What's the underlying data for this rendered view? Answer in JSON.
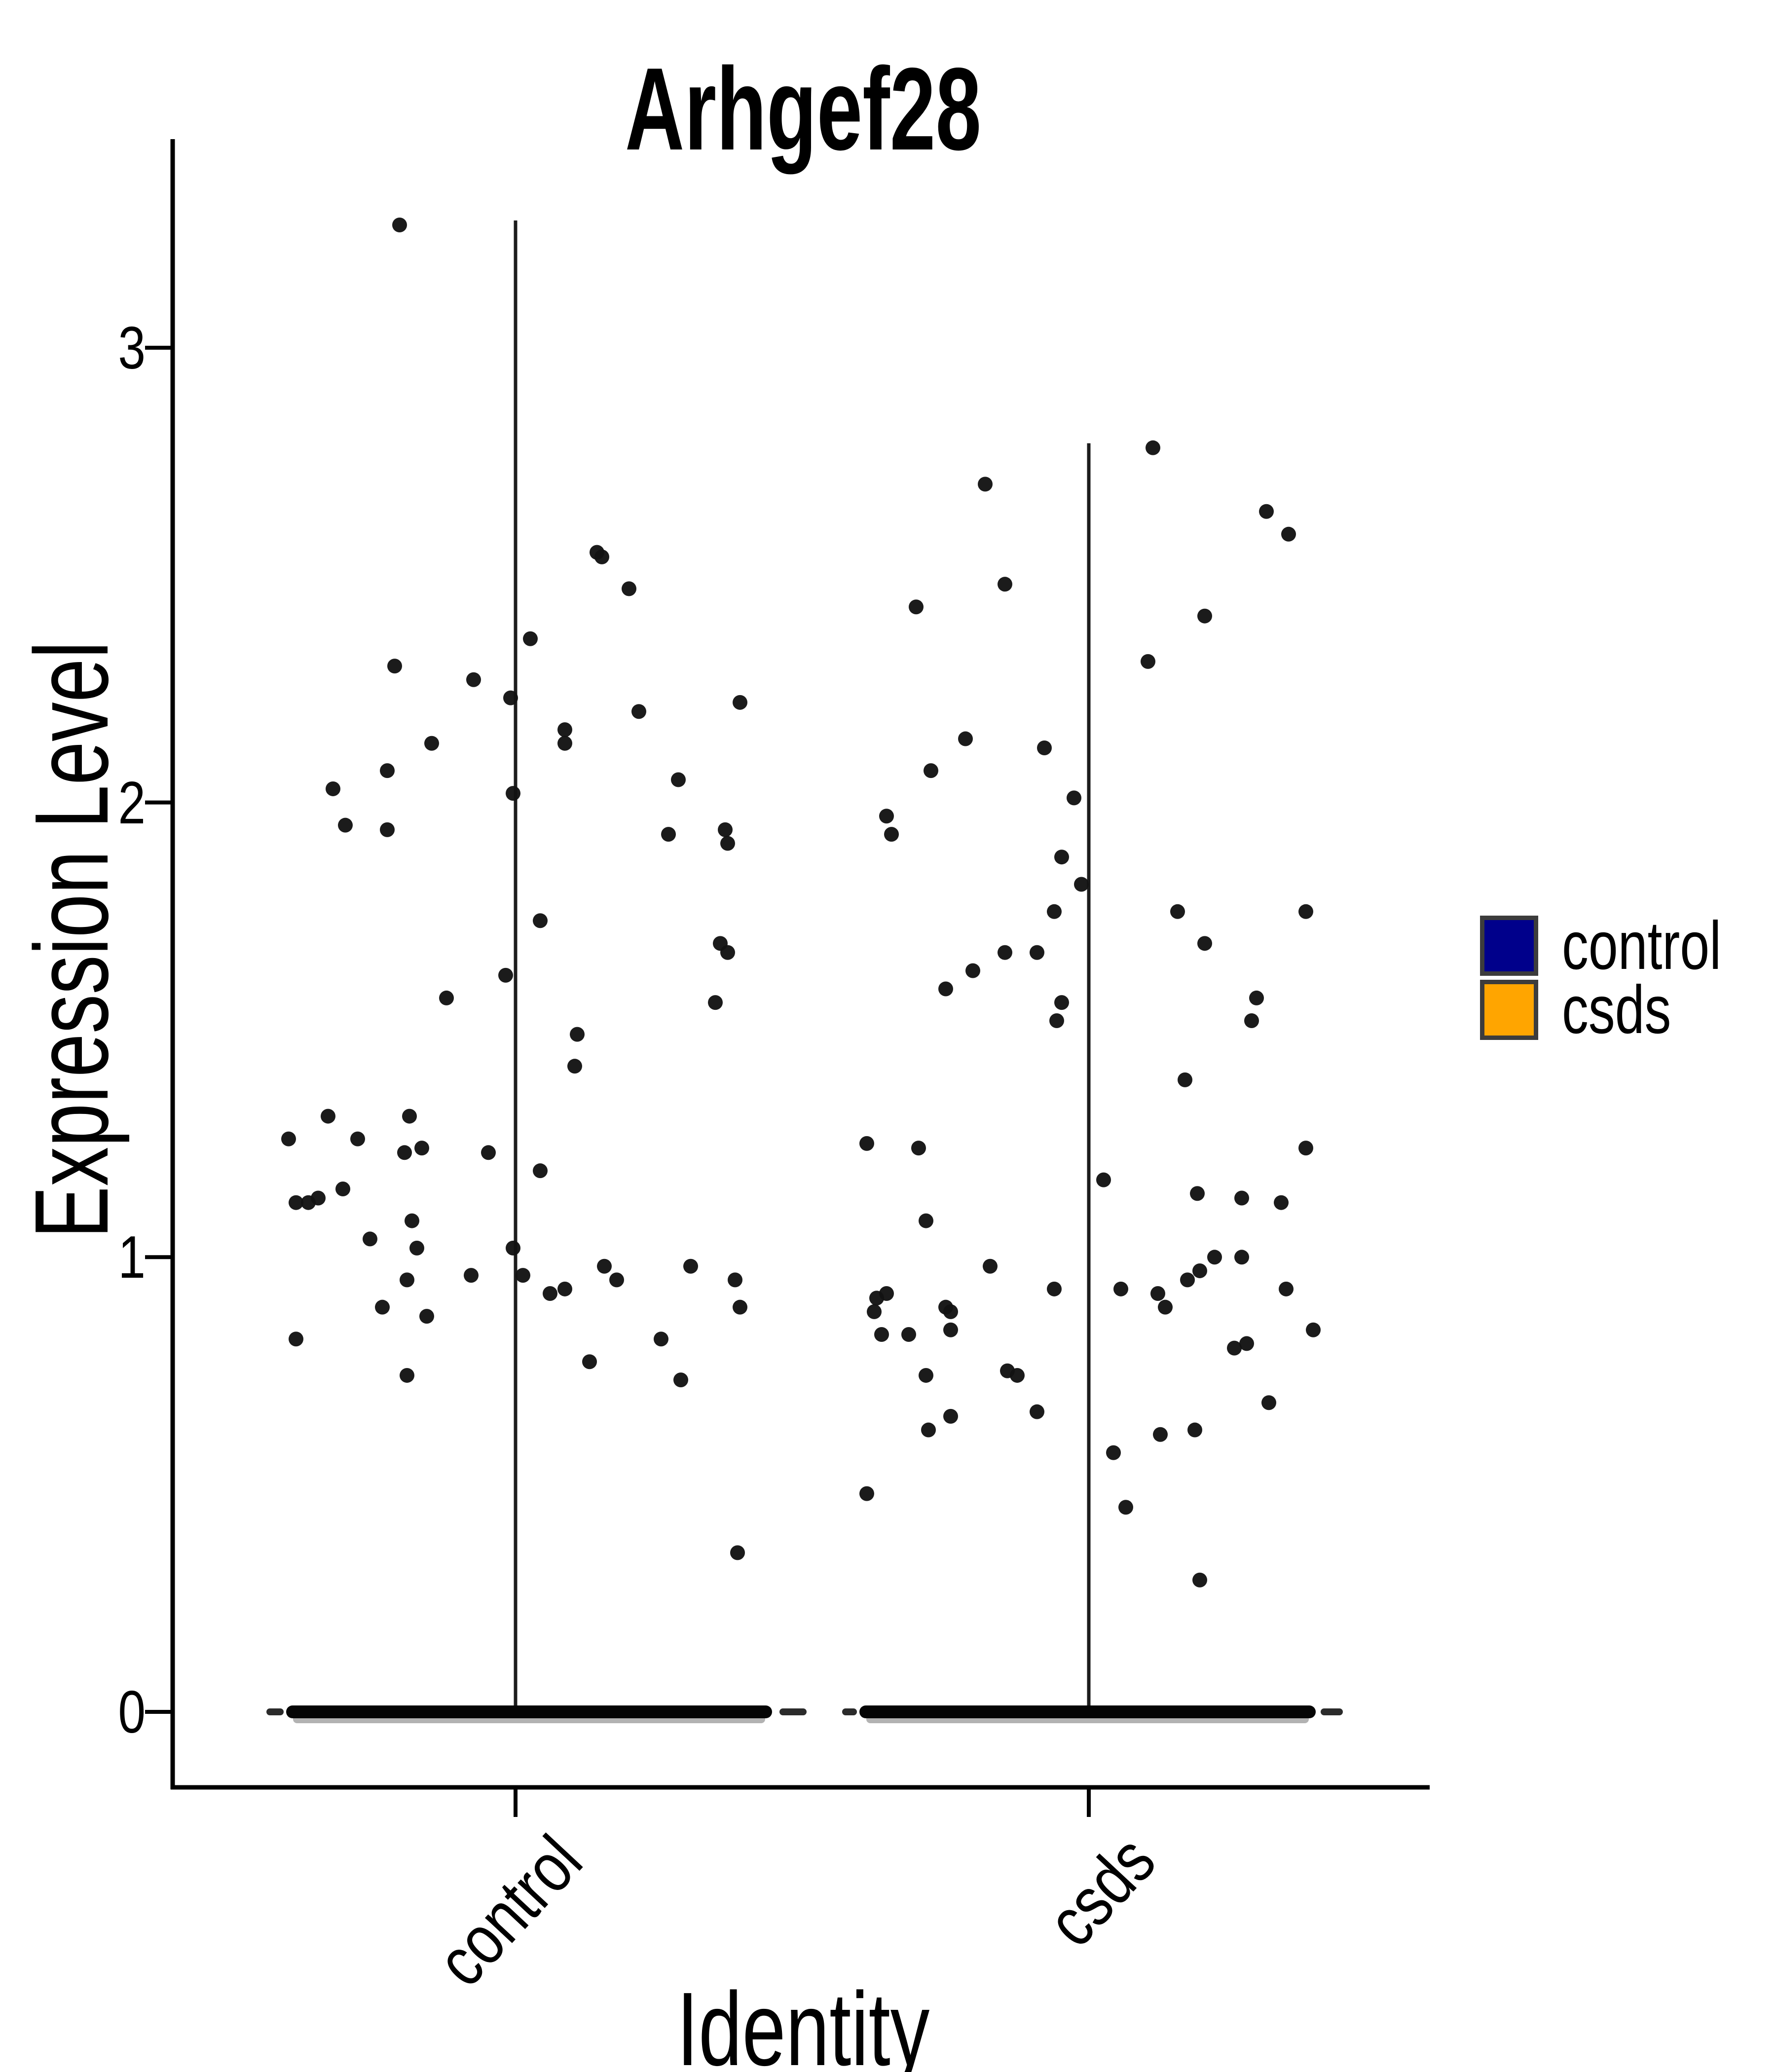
{
  "title": "Arhgef28",
  "y_axis": {
    "label": "Expression Level",
    "ticks": [
      {
        "label": "3",
        "value": 3
      },
      {
        "label": "2",
        "value": 2
      },
      {
        "label": "1",
        "value": 1
      },
      {
        "label": "0",
        "value": 0
      }
    ]
  },
  "x_axis": {
    "label": "Identity",
    "categories": [
      "control",
      "csds"
    ]
  },
  "legend": {
    "items": [
      {
        "label": "control",
        "color": "#00008B"
      },
      {
        "label": "csds",
        "color": "#FFA500"
      }
    ],
    "border_color": "#3c3c3c"
  },
  "chart_data": {
    "type": "scatter",
    "subtype": "violin-jitter (Seurat VlnPlot, collapsed violins with jittered points)",
    "title": "Arhgef28",
    "xlabel": "Identity",
    "ylabel": "Expression Level",
    "ylim": [
      -0.17,
      3.46
    ],
    "yticks": [
      0,
      1,
      2,
      3
    ],
    "grid": false,
    "legend_position": "right",
    "point_color": "#121212",
    "categories": [
      "control",
      "csds"
    ],
    "series": [
      {
        "name": "control",
        "color": "#00008B",
        "stem_max": 3.28,
        "points_value_jitter": [
          [
            3.27,
            -0.47
          ],
          [
            2.55,
            0.33
          ],
          [
            2.54,
            0.35
          ],
          [
            2.47,
            0.46
          ],
          [
            2.36,
            0.06
          ],
          [
            2.3,
            -0.49
          ],
          [
            2.27,
            -0.17
          ],
          [
            2.23,
            -0.02
          ],
          [
            2.22,
            0.91
          ],
          [
            2.2,
            0.5
          ],
          [
            2.16,
            0.2
          ],
          [
            2.13,
            -0.34
          ],
          [
            2.13,
            0.2
          ],
          [
            2.07,
            -0.52
          ],
          [
            2.05,
            0.66
          ],
          [
            2.03,
            -0.74
          ],
          [
            2.02,
            -0.01
          ],
          [
            1.95,
            -0.69
          ],
          [
            1.94,
            -0.52
          ],
          [
            1.94,
            0.85
          ],
          [
            1.93,
            0.62
          ],
          [
            1.91,
            0.86
          ],
          [
            1.74,
            0.1
          ],
          [
            1.69,
            0.83
          ],
          [
            1.67,
            0.86
          ],
          [
            1.62,
            -0.04
          ],
          [
            1.57,
            -0.28
          ],
          [
            1.56,
            0.81
          ],
          [
            1.49,
            0.25
          ],
          [
            1.42,
            0.24
          ],
          [
            1.31,
            -0.76
          ],
          [
            1.31,
            -0.43
          ],
          [
            1.26,
            -0.92
          ],
          [
            1.26,
            -0.64
          ],
          [
            1.24,
            -0.38
          ],
          [
            1.23,
            -0.45
          ],
          [
            1.23,
            -0.11
          ],
          [
            1.19,
            0.1
          ],
          [
            1.15,
            -0.7
          ],
          [
            1.13,
            -0.8
          ],
          [
            1.12,
            -0.89
          ],
          [
            1.12,
            -0.84
          ],
          [
            1.08,
            -0.42
          ],
          [
            1.04,
            -0.59
          ],
          [
            1.02,
            -0.4
          ],
          [
            1.02,
            -0.01
          ],
          [
            0.98,
            0.36
          ],
          [
            0.98,
            0.71
          ],
          [
            0.96,
            -0.18
          ],
          [
            0.96,
            0.03
          ],
          [
            0.95,
            0.41
          ],
          [
            0.95,
            0.89
          ],
          [
            0.95,
            -0.44
          ],
          [
            0.93,
            0.2
          ],
          [
            0.92,
            0.14
          ],
          [
            0.89,
            -0.54
          ],
          [
            0.89,
            0.91
          ],
          [
            0.87,
            -0.36
          ],
          [
            0.82,
            -0.89
          ],
          [
            0.82,
            0.59
          ],
          [
            0.77,
            0.3
          ],
          [
            0.74,
            -0.44
          ],
          [
            0.73,
            0.67
          ],
          [
            0.35,
            0.9
          ]
        ],
        "zero_band": {
          "value": 0,
          "span": [
            -0.93,
            1.04
          ],
          "dashes": [
            [
              -1.01,
              -0.94
            ],
            [
              1.07,
              1.18
            ]
          ]
        }
      },
      {
        "name": "csds",
        "color": "#FFA500",
        "stem_max": 2.79,
        "points_value_jitter": [
          [
            2.78,
            0.26
          ],
          [
            2.7,
            -0.42
          ],
          [
            2.64,
            0.72
          ],
          [
            2.59,
            0.81
          ],
          [
            2.48,
            -0.34
          ],
          [
            2.43,
            -0.7
          ],
          [
            2.41,
            0.47
          ],
          [
            2.31,
            0.24
          ],
          [
            2.14,
            -0.5
          ],
          [
            2.12,
            -0.18
          ],
          [
            2.07,
            -0.64
          ],
          [
            2.01,
            -0.06
          ],
          [
            1.97,
            -0.82
          ],
          [
            1.93,
            -0.8
          ],
          [
            1.88,
            -0.11
          ],
          [
            1.82,
            -0.03
          ],
          [
            1.76,
            -0.14
          ],
          [
            1.76,
            0.36
          ],
          [
            1.76,
            0.88
          ],
          [
            1.69,
            0.47
          ],
          [
            1.67,
            -0.34
          ],
          [
            1.67,
            -0.21
          ],
          [
            1.63,
            -0.47
          ],
          [
            1.59,
            -0.58
          ],
          [
            1.56,
            -0.11
          ],
          [
            1.52,
            -0.13
          ],
          [
            1.57,
            0.68
          ],
          [
            1.52,
            0.66
          ],
          [
            1.39,
            0.39
          ],
          [
            1.25,
            -0.9
          ],
          [
            1.24,
            -0.69
          ],
          [
            1.24,
            0.88
          ],
          [
            1.17,
            0.06
          ],
          [
            1.14,
            0.44
          ],
          [
            1.13,
            0.62
          ],
          [
            1.12,
            0.78
          ],
          [
            1.08,
            -0.66
          ],
          [
            1.0,
            0.51
          ],
          [
            1.0,
            0.62
          ],
          [
            0.98,
            -0.4
          ],
          [
            0.97,
            0.45
          ],
          [
            0.95,
            0.4
          ],
          [
            0.93,
            -0.14
          ],
          [
            0.93,
            0.13
          ],
          [
            0.93,
            0.8
          ],
          [
            0.92,
            0.28
          ],
          [
            0.92,
            -0.82
          ],
          [
            0.91,
            -0.86
          ],
          [
            0.89,
            0.31
          ],
          [
            0.89,
            -0.58
          ],
          [
            0.88,
            -0.87
          ],
          [
            0.88,
            -0.56
          ],
          [
            0.84,
            -0.56
          ],
          [
            0.84,
            0.91
          ],
          [
            0.83,
            -0.84
          ],
          [
            0.83,
            -0.73
          ],
          [
            0.81,
            0.64
          ],
          [
            0.8,
            0.59
          ],
          [
            0.75,
            -0.33
          ],
          [
            0.74,
            -0.29
          ],
          [
            0.74,
            -0.66
          ],
          [
            0.68,
            0.73
          ],
          [
            0.66,
            -0.21
          ],
          [
            0.65,
            -0.56
          ],
          [
            0.62,
            -0.65
          ],
          [
            0.62,
            0.43
          ],
          [
            0.61,
            0.29
          ],
          [
            0.57,
            0.1
          ],
          [
            0.48,
            -0.9
          ],
          [
            0.45,
            0.15
          ],
          [
            0.29,
            0.45
          ]
        ],
        "zero_band": {
          "value": 0,
          "span": [
            -0.93,
            0.92
          ],
          "dashes": [
            [
              -1.0,
              -0.94
            ],
            [
              0.94,
              1.03
            ]
          ]
        }
      }
    ],
    "annotations": "Both groups have a dense solid row of overlapping points at expression level 0"
  }
}
